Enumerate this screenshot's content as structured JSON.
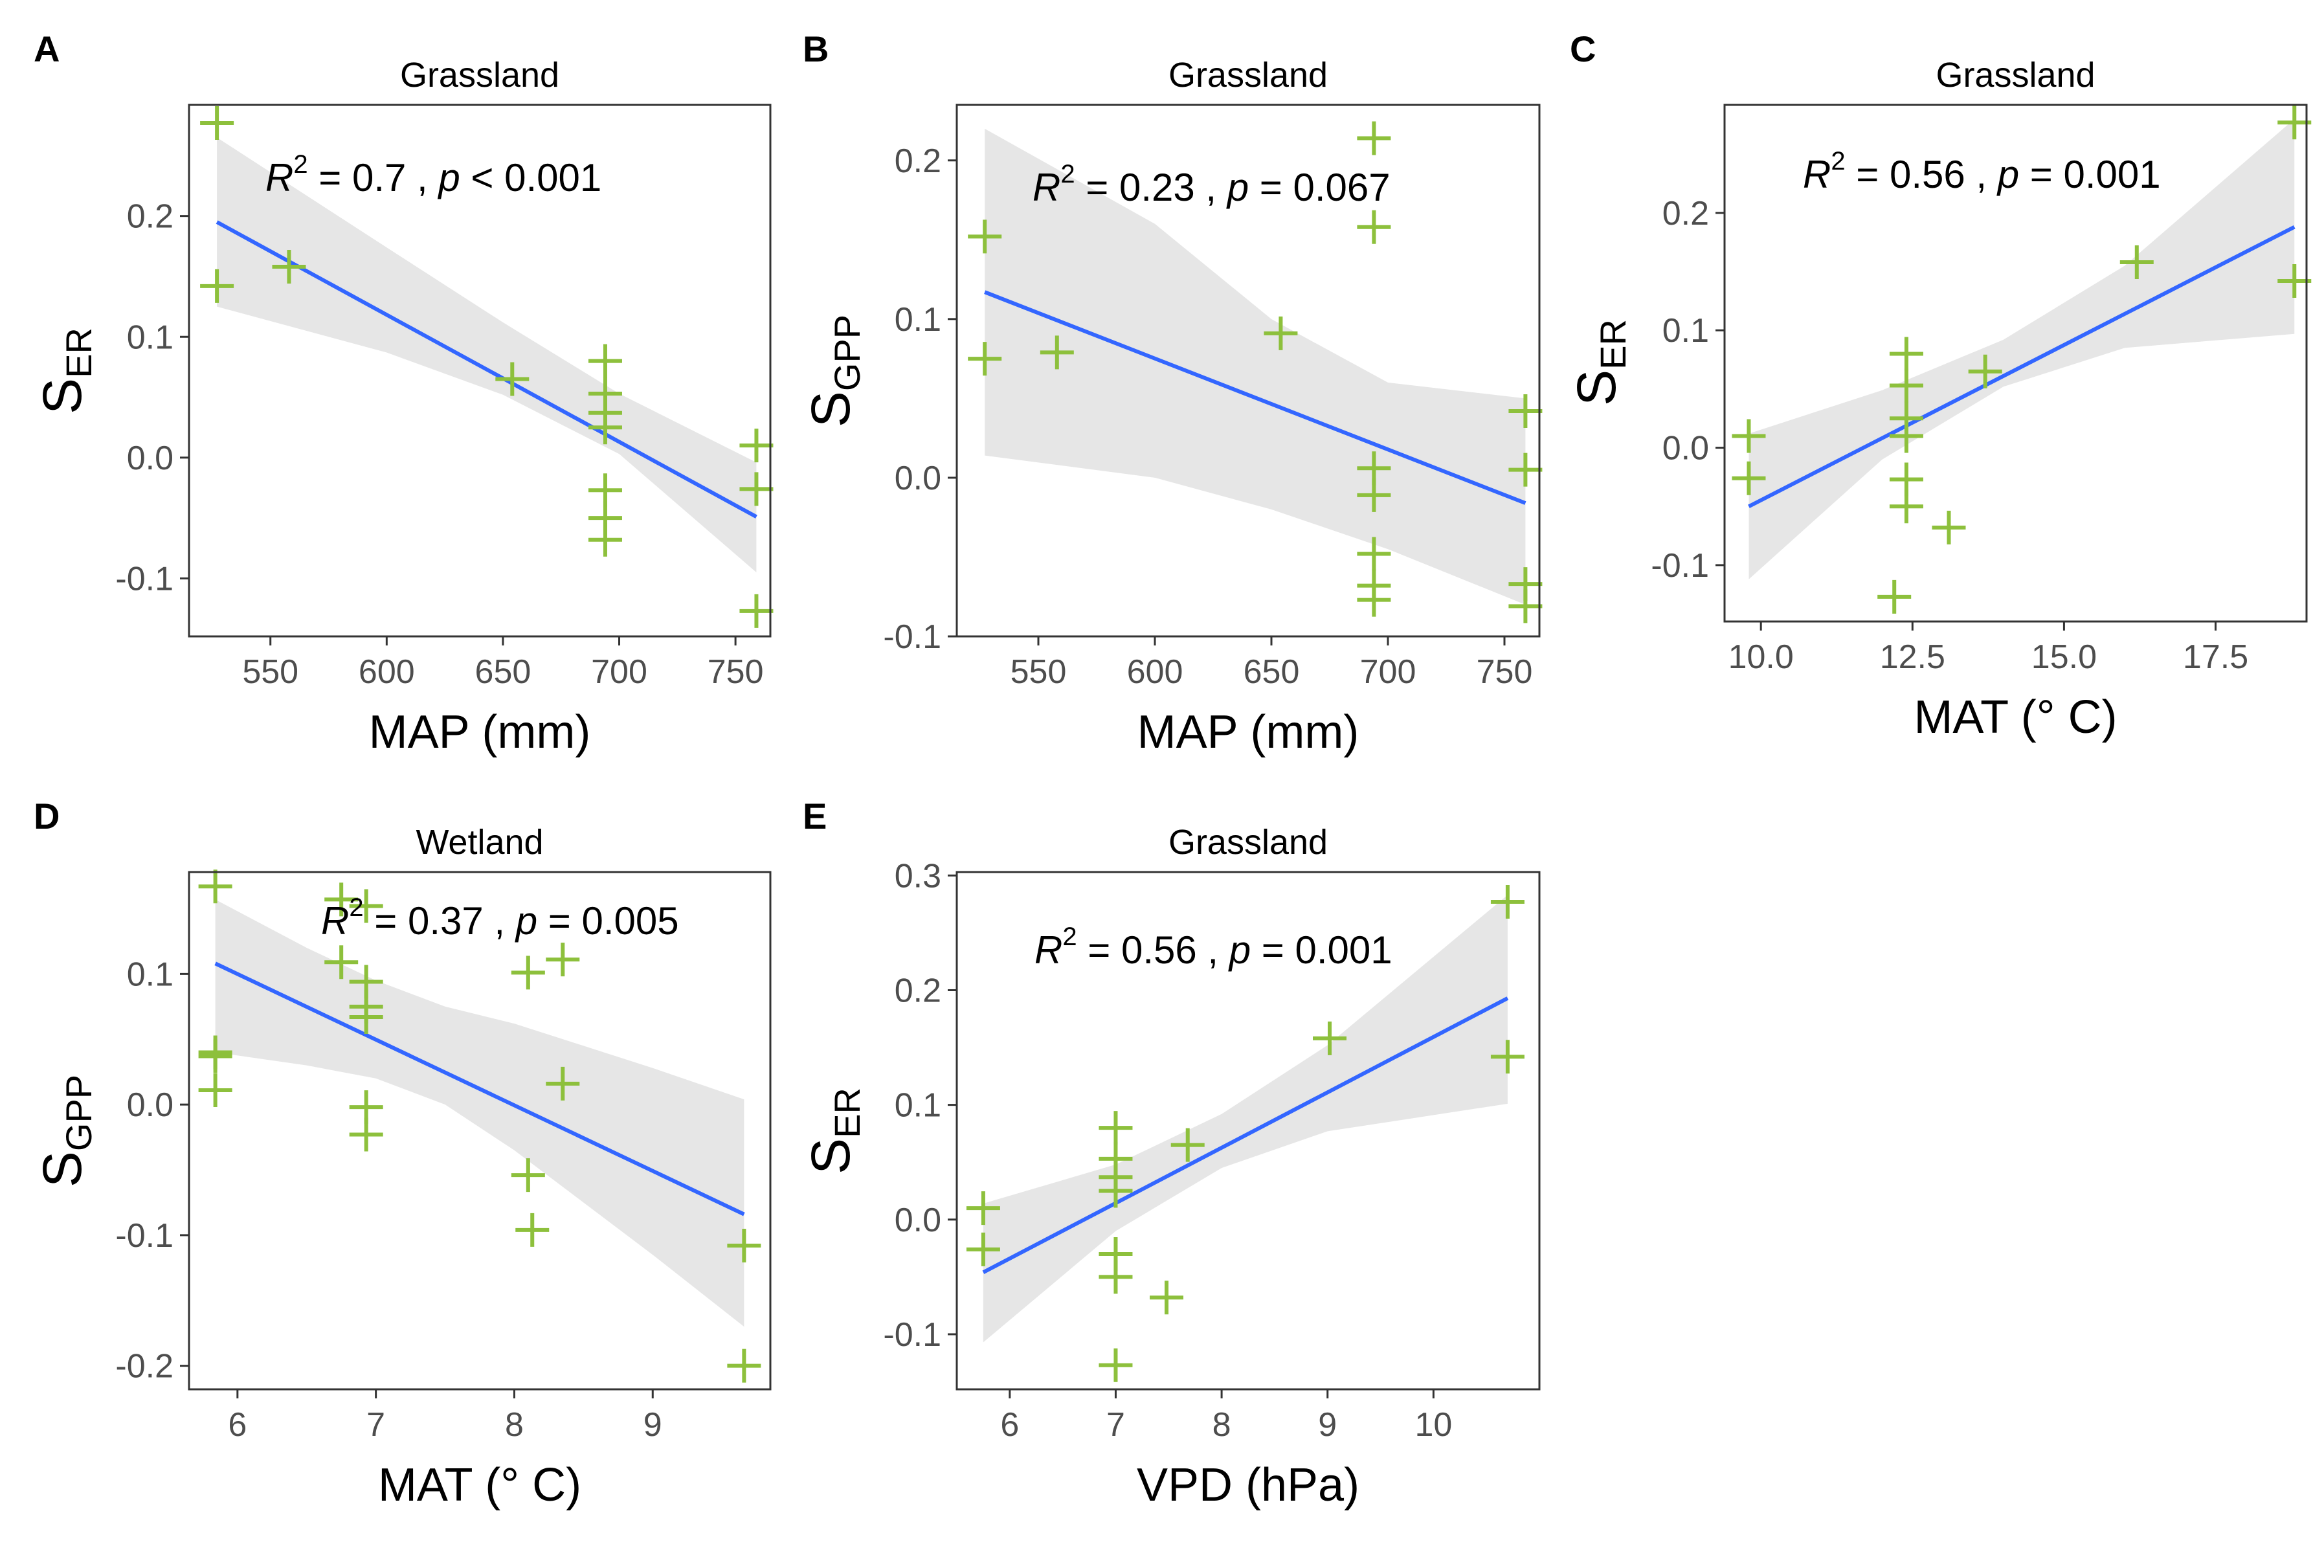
{
  "colors": {
    "point": "#8dc03c",
    "line": "#3366ff",
    "band": "#e6e6e6",
    "axis": "#333333",
    "text": "#000000",
    "tick_label": "#4d4d4d"
  },
  "chart_data": [
    {
      "panel_label": "A",
      "type": "scatter",
      "title": "Grassland",
      "xlabel": "MAP (mm)",
      "ylabel_main": "S",
      "ylabel_sub": "ER",
      "annotation": {
        "r2_label": "R",
        "r2_sup": "2",
        "r2_value": " = 0.7 , ",
        "p_label": "p",
        "p_value": " < 0.001"
      },
      "xlim": [
        515,
        765
      ],
      "ylim": [
        -0.148,
        0.292
      ],
      "xticks": [
        550,
        600,
        650,
        700,
        750
      ],
      "xtick_labels": [
        "550",
        "600",
        "650",
        "700",
        "750"
      ],
      "yticks": [
        -0.1,
        0.0,
        0.1,
        0.2
      ],
      "ytick_labels": [
        "-0.1",
        "0.0",
        "0.1",
        "0.2"
      ],
      "points": [
        {
          "x": 527,
          "y": 0.277
        },
        {
          "x": 527,
          "y": 0.142
        },
        {
          "x": 558,
          "y": 0.158
        },
        {
          "x": 654,
          "y": 0.065
        },
        {
          "x": 694,
          "y": 0.08
        },
        {
          "x": 694,
          "y": 0.053
        },
        {
          "x": 694,
          "y": 0.037
        },
        {
          "x": 694,
          "y": 0.025
        },
        {
          "x": 694,
          "y": -0.027
        },
        {
          "x": 694,
          "y": -0.05
        },
        {
          "x": 694,
          "y": -0.068
        },
        {
          "x": 759,
          "y": 0.01
        },
        {
          "x": 759,
          "y": -0.026
        },
        {
          "x": 759,
          "y": -0.127
        }
      ],
      "fit": {
        "x": [
          527,
          759
        ],
        "y": [
          0.195,
          -0.049
        ]
      },
      "band": {
        "x": [
          527,
          600,
          650,
          700,
          759
        ],
        "lower": [
          0.125,
          0.087,
          0.052,
          0.003,
          -0.095
        ],
        "upper": [
          0.265,
          0.174,
          0.112,
          0.053,
          -0.004
        ]
      }
    },
    {
      "panel_label": "B",
      "type": "scatter",
      "title": "Grassland",
      "xlabel": "MAP (mm)",
      "ylabel_main": "S",
      "ylabel_sub": "GPP",
      "annotation": {
        "r2_label": "R",
        "r2_sup": "2",
        "r2_value": " = 0.23 , ",
        "p_label": "p",
        "p_value": " = 0.067"
      },
      "xlim": [
        515,
        765
      ],
      "ylim": [
        -0.1,
        0.235
      ],
      "xticks": [
        550,
        600,
        650,
        700,
        750
      ],
      "xtick_labels": [
        "550",
        "600",
        "650",
        "700",
        "750"
      ],
      "yticks": [
        -0.1,
        0.0,
        0.1,
        0.2
      ],
      "ytick_labels": [
        "-0.1",
        "0.0",
        "0.1",
        "0.2"
      ],
      "points": [
        {
          "x": 527,
          "y": 0.152
        },
        {
          "x": 527,
          "y": 0.075
        },
        {
          "x": 558,
          "y": 0.079
        },
        {
          "x": 654,
          "y": 0.091
        },
        {
          "x": 694,
          "y": 0.214
        },
        {
          "x": 694,
          "y": 0.158
        },
        {
          "x": 694,
          "y": 0.006
        },
        {
          "x": 694,
          "y": -0.011
        },
        {
          "x": 694,
          "y": -0.048
        },
        {
          "x": 694,
          "y": -0.068
        },
        {
          "x": 694,
          "y": -0.077
        },
        {
          "x": 759,
          "y": 0.042
        },
        {
          "x": 759,
          "y": 0.005
        },
        {
          "x": 759,
          "y": -0.067
        },
        {
          "x": 759,
          "y": -0.081
        }
      ],
      "fit": {
        "x": [
          527,
          759
        ],
        "y": [
          0.117,
          -0.016
        ]
      },
      "band": {
        "x": [
          527,
          600,
          650,
          700,
          759
        ],
        "lower": [
          0.014,
          0.0,
          -0.02,
          -0.045,
          -0.08
        ],
        "upper": [
          0.22,
          0.16,
          0.1,
          0.06,
          0.05
        ]
      }
    },
    {
      "panel_label": "C",
      "type": "scatter",
      "title": "Grassland",
      "xlabel": "MAT (° C)",
      "ylabel_main": "S",
      "ylabel_sub": "ER",
      "annotation": {
        "r2_label": "R",
        "r2_sup": "2",
        "r2_value": " = 0.56 , ",
        "p_label": "p",
        "p_value": " = 0.001"
      },
      "xlim": [
        9.4,
        19.0
      ],
      "ylim": [
        -0.148,
        0.292
      ],
      "xticks": [
        10.0,
        12.5,
        15.0,
        17.5
      ],
      "xtick_labels": [
        "10.0",
        "12.5",
        "15.0",
        "17.5"
      ],
      "yticks": [
        -0.1,
        0.0,
        0.1,
        0.2
      ],
      "ytick_labels": [
        "-0.1",
        "0.0",
        "0.1",
        "0.2"
      ],
      "points": [
        {
          "x": 9.8,
          "y": 0.01
        },
        {
          "x": 9.8,
          "y": -0.026
        },
        {
          "x": 12.2,
          "y": -0.127
        },
        {
          "x": 12.4,
          "y": 0.08
        },
        {
          "x": 12.4,
          "y": 0.053
        },
        {
          "x": 12.4,
          "y": 0.025
        },
        {
          "x": 12.4,
          "y": 0.01
        },
        {
          "x": 12.4,
          "y": -0.027
        },
        {
          "x": 12.4,
          "y": -0.05
        },
        {
          "x": 13.1,
          "y": -0.068
        },
        {
          "x": 13.7,
          "y": 0.065
        },
        {
          "x": 16.2,
          "y": 0.158
        },
        {
          "x": 18.8,
          "y": 0.277
        },
        {
          "x": 18.8,
          "y": 0.142
        }
      ],
      "fit": {
        "x": [
          9.8,
          18.8
        ],
        "y": [
          -0.05,
          0.188
        ]
      },
      "band": {
        "x": [
          9.8,
          12.0,
          14.0,
          16.0,
          18.8
        ],
        "lower": [
          -0.112,
          -0.01,
          0.052,
          0.085,
          0.097
        ],
        "upper": [
          0.012,
          0.049,
          0.092,
          0.155,
          0.28
        ]
      }
    },
    {
      "panel_label": "D",
      "type": "scatter",
      "title": "Wetland",
      "xlabel": "MAT (° C)",
      "ylabel_main": "S",
      "ylabel_sub": "GPP",
      "annotation": {
        "r2_label": "R",
        "r2_sup": "2",
        "r2_value": " = 0.37 , ",
        "p_label": "p",
        "p_value": " = 0.005"
      },
      "xlim": [
        5.65,
        9.85
      ],
      "ylim": [
        -0.218,
        0.178
      ],
      "xticks": [
        6,
        7,
        8,
        9
      ],
      "xtick_labels": [
        "6",
        "7",
        "8",
        "9"
      ],
      "yticks": [
        -0.2,
        -0.1,
        0.0,
        0.1
      ],
      "ytick_labels": [
        "-0.2",
        "-0.1",
        "0.0",
        "0.1"
      ],
      "points": [
        {
          "x": 5.84,
          "y": 0.167
        },
        {
          "x": 5.84,
          "y": 0.04
        },
        {
          "x": 5.84,
          "y": 0.037
        },
        {
          "x": 5.84,
          "y": 0.011
        },
        {
          "x": 6.75,
          "y": 0.157
        },
        {
          "x": 6.75,
          "y": 0.109
        },
        {
          "x": 6.93,
          "y": 0.152
        },
        {
          "x": 6.93,
          "y": 0.094
        },
        {
          "x": 6.93,
          "y": 0.075
        },
        {
          "x": 6.93,
          "y": 0.067
        },
        {
          "x": 6.93,
          "y": -0.002
        },
        {
          "x": 6.93,
          "y": -0.023
        },
        {
          "x": 8.1,
          "y": 0.101
        },
        {
          "x": 8.1,
          "y": -0.054
        },
        {
          "x": 8.13,
          "y": -0.096
        },
        {
          "x": 8.35,
          "y": 0.111
        },
        {
          "x": 8.35,
          "y": 0.016
        },
        {
          "x": 9.66,
          "y": -0.108
        },
        {
          "x": 9.66,
          "y": -0.2
        }
      ],
      "fit": {
        "x": [
          5.84,
          9.66
        ],
        "y": [
          0.108,
          -0.084
        ]
      },
      "band": {
        "x": [
          5.84,
          6.5,
          7.0,
          7.5,
          8.0,
          8.5,
          9.0,
          9.66
        ],
        "lower": [
          0.04,
          0.03,
          0.02,
          0.0,
          -0.035,
          -0.075,
          -0.115,
          -0.17
        ],
        "upper": [
          0.157,
          0.12,
          0.095,
          0.075,
          0.062,
          0.045,
          0.028,
          0.004
        ]
      }
    },
    {
      "panel_label": "E",
      "type": "scatter",
      "title": "Grassland",
      "xlabel": "VPD (hPa)",
      "ylabel_main": "S",
      "ylabel_sub": "ER",
      "annotation": {
        "r2_label": "R",
        "r2_sup": "2",
        "r2_value": " = 0.56 , ",
        "p_label": "p",
        "p_value": " = 0.001"
      },
      "xlim": [
        5.5,
        11.0
      ],
      "ylim": [
        -0.148,
        0.303
      ],
      "xticks": [
        6,
        7,
        8,
        9,
        10
      ],
      "xtick_labels": [
        "6",
        "7",
        "8",
        "9",
        "10"
      ],
      "yticks": [
        -0.1,
        0.0,
        0.1,
        0.2,
        0.3
      ],
      "ytick_labels": [
        "-0.1",
        "0.0",
        "0.1",
        "0.2",
        "0.3"
      ],
      "points": [
        {
          "x": 5.75,
          "y": 0.01
        },
        {
          "x": 5.75,
          "y": -0.026
        },
        {
          "x": 7.0,
          "y": 0.08
        },
        {
          "x": 7.0,
          "y": 0.053
        },
        {
          "x": 7.0,
          "y": 0.037
        },
        {
          "x": 7.0,
          "y": 0.025
        },
        {
          "x": 7.0,
          "y": -0.03
        },
        {
          "x": 7.0,
          "y": -0.05
        },
        {
          "x": 7.0,
          "y": -0.127
        },
        {
          "x": 7.48,
          "y": -0.068
        },
        {
          "x": 7.68,
          "y": 0.065
        },
        {
          "x": 9.02,
          "y": 0.158
        },
        {
          "x": 10.7,
          "y": 0.277
        },
        {
          "x": 10.7,
          "y": 0.142
        }
      ],
      "fit": {
        "x": [
          5.75,
          10.7
        ],
        "y": [
          -0.046,
          0.193
        ]
      },
      "band": {
        "x": [
          5.75,
          7.0,
          8.0,
          9.0,
          10.7
        ],
        "lower": [
          -0.107,
          -0.01,
          0.045,
          0.077,
          0.101
        ],
        "upper": [
          0.014,
          0.048,
          0.092,
          0.152,
          0.283
        ]
      }
    }
  ]
}
